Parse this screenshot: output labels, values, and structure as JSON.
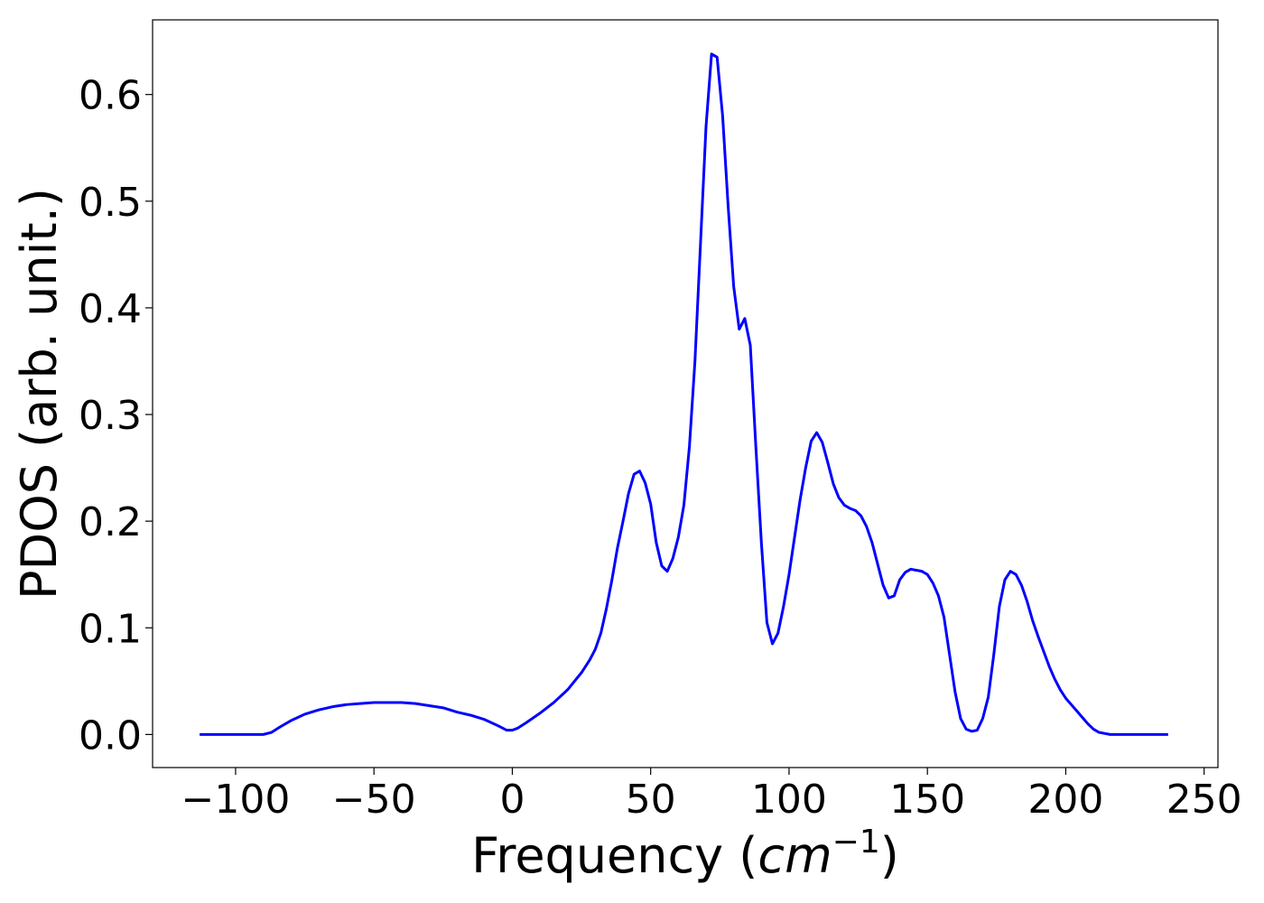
{
  "chart_data": {
    "type": "line",
    "title": "",
    "xlabel": "Frequency (",
    "xlabel_math": "cm",
    "xlabel_sup": "−1",
    "xlabel_close": ")",
    "ylabel": "PDOS (arb. unit.)",
    "xlim": [
      -130,
      255
    ],
    "ylim": [
      -0.031,
      0.67
    ],
    "xticks": [
      -100,
      -50,
      0,
      50,
      100,
      150,
      200,
      250
    ],
    "xtick_labels": [
      "−100",
      "−50",
      "0",
      "50",
      "100",
      "150",
      "200",
      "250"
    ],
    "yticks": [
      0.0,
      0.1,
      0.2,
      0.3,
      0.4,
      0.5,
      0.6
    ],
    "ytick_labels": [
      "0.0",
      "0.1",
      "0.2",
      "0.3",
      "0.4",
      "0.5",
      "0.6"
    ],
    "grid": false,
    "legend": "none",
    "series": [
      {
        "color": "#0000ff",
        "x": [
          -113,
          -90,
          -87,
          -84,
          -80,
          -75,
          -70,
          -65,
          -60,
          -55,
          -50,
          -45,
          -40,
          -35,
          -30,
          -25,
          -20,
          -15,
          -10,
          -5,
          -2,
          0,
          2,
          5,
          10,
          15,
          20,
          25,
          28,
          30,
          32,
          34,
          36,
          38,
          40,
          42,
          44,
          46,
          48,
          50,
          52,
          54,
          56,
          58,
          60,
          62,
          64,
          66,
          68,
          70,
          72,
          74,
          76,
          78,
          80,
          82,
          84,
          86,
          88,
          90,
          92,
          94,
          96,
          98,
          100,
          102,
          104,
          106,
          108,
          110,
          112,
          114,
          116,
          118,
          120,
          122,
          124,
          126,
          128,
          130,
          132,
          134,
          136,
          138,
          140,
          142,
          144,
          146,
          148,
          150,
          152,
          154,
          156,
          158,
          160,
          162,
          164,
          166,
          168,
          170,
          172,
          174,
          176,
          178,
          180,
          182,
          184,
          186,
          188,
          190,
          192,
          194,
          196,
          198,
          200,
          202,
          204,
          206,
          208,
          210,
          212,
          214,
          216,
          220,
          237
        ],
        "y": [
          0.0,
          0.0,
          0.002,
          0.007,
          0.013,
          0.019,
          0.023,
          0.026,
          0.028,
          0.029,
          0.03,
          0.03,
          0.03,
          0.029,
          0.027,
          0.025,
          0.021,
          0.018,
          0.014,
          0.008,
          0.004,
          0.004,
          0.006,
          0.011,
          0.02,
          0.03,
          0.042,
          0.058,
          0.07,
          0.08,
          0.095,
          0.118,
          0.145,
          0.175,
          0.2,
          0.226,
          0.244,
          0.247,
          0.236,
          0.216,
          0.18,
          0.158,
          0.153,
          0.165,
          0.185,
          0.215,
          0.27,
          0.35,
          0.46,
          0.57,
          0.638,
          0.635,
          0.58,
          0.495,
          0.42,
          0.38,
          0.39,
          0.365,
          0.27,
          0.18,
          0.105,
          0.085,
          0.095,
          0.12,
          0.15,
          0.185,
          0.22,
          0.25,
          0.275,
          0.283,
          0.274,
          0.255,
          0.235,
          0.222,
          0.215,
          0.212,
          0.21,
          0.205,
          0.195,
          0.18,
          0.16,
          0.14,
          0.128,
          0.13,
          0.145,
          0.152,
          0.155,
          0.154,
          0.153,
          0.15,
          0.142,
          0.13,
          0.11,
          0.075,
          0.04,
          0.015,
          0.005,
          0.003,
          0.004,
          0.015,
          0.035,
          0.075,
          0.12,
          0.145,
          0.153,
          0.15,
          0.14,
          0.125,
          0.107,
          0.092,
          0.078,
          0.064,
          0.052,
          0.042,
          0.034,
          0.028,
          0.022,
          0.016,
          0.01,
          0.005,
          0.002,
          0.001,
          0.0,
          0.0,
          0.0
        ]
      }
    ]
  }
}
